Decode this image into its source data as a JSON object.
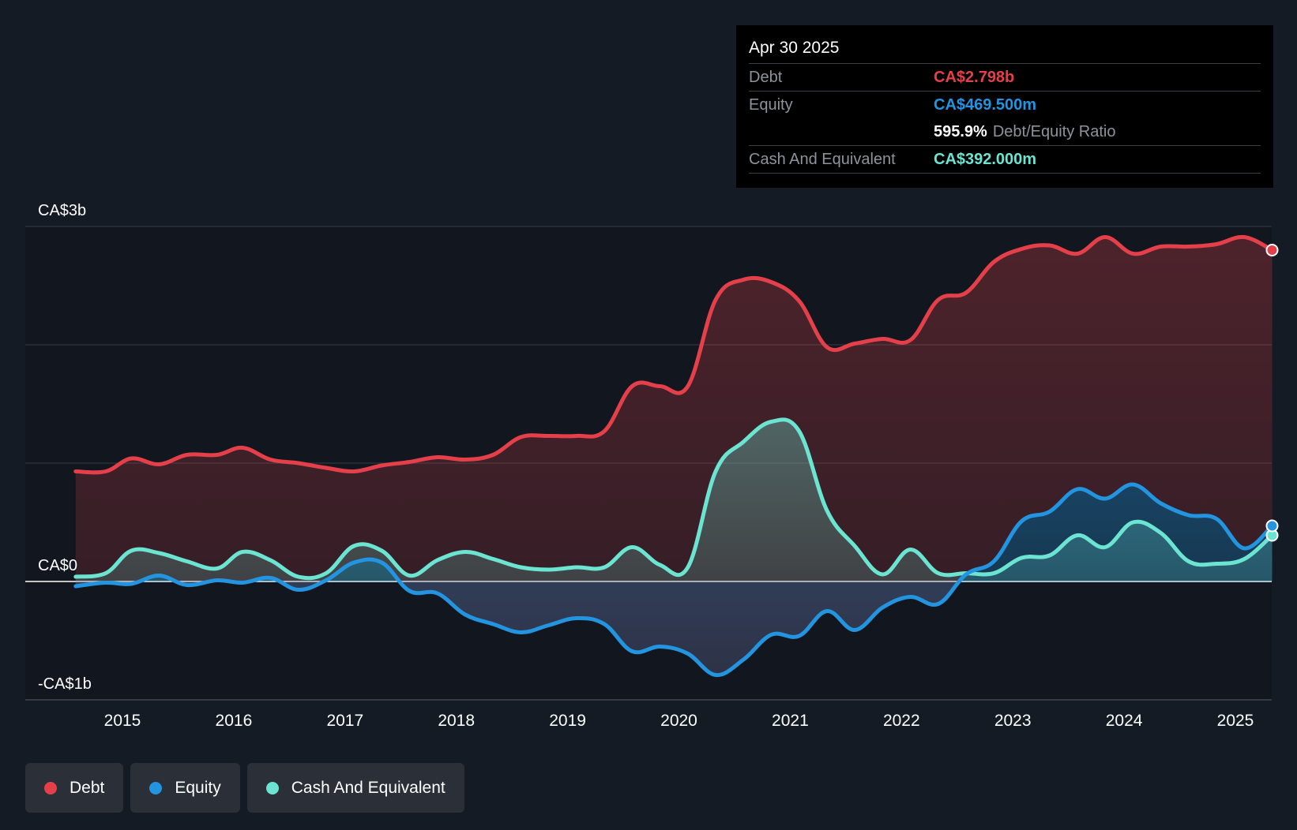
{
  "tooltip": {
    "date": "Apr 30 2025",
    "debt_label": "Debt",
    "debt_value": "CA$2.798b",
    "equity_label": "Equity",
    "equity_value": "CA$469.500m",
    "ratio_value": "595.9%",
    "ratio_label": "Debt/Equity Ratio",
    "cash_label": "Cash And Equivalent",
    "cash_value": "CA$392.000m"
  },
  "legend": [
    {
      "label": "Debt",
      "color": "#e5404a"
    },
    {
      "label": "Equity",
      "color": "#2394df"
    },
    {
      "label": "Cash And Equivalent",
      "color": "#6ce4d2"
    }
  ],
  "chart_data": {
    "type": "area",
    "y_unit": "CA$ billions",
    "ylim": [
      -1,
      3
    ],
    "xlim": [
      2014.6,
      2025.33
    ],
    "y_tick_labels": [
      {
        "value": 3,
        "label": "CA$3b"
      },
      {
        "value": 0,
        "label": "CA$0"
      },
      {
        "value": -1,
        "label": "-CA$1b"
      }
    ],
    "x_ticks": [
      2015,
      2016,
      2017,
      2018,
      2019,
      2020,
      2021,
      2022,
      2023,
      2024,
      2025
    ],
    "grid": true,
    "series": [
      {
        "name": "Debt",
        "color": "#e5404a",
        "x": [
          2014.58,
          2014.85,
          2015.08,
          2015.33,
          2015.58,
          2015.85,
          2016.08,
          2016.33,
          2016.58,
          2016.83,
          2017.08,
          2017.33,
          2017.58,
          2017.83,
          2018.08,
          2018.33,
          2018.58,
          2018.83,
          2019.08,
          2019.33,
          2019.58,
          2019.83,
          2020.08,
          2020.33,
          2020.58,
          2020.83,
          2021.08,
          2021.33,
          2021.58,
          2021.83,
          2022.08,
          2022.33,
          2022.58,
          2022.83,
          2023.08,
          2023.33,
          2023.58,
          2023.83,
          2024.08,
          2024.33,
          2024.58,
          2024.83,
          2025.08,
          2025.33
        ],
        "y": [
          0.93,
          0.93,
          1.04,
          0.99,
          1.07,
          1.07,
          1.13,
          1.03,
          1.0,
          0.96,
          0.93,
          0.98,
          1.01,
          1.05,
          1.03,
          1.07,
          1.22,
          1.23,
          1.23,
          1.27,
          1.65,
          1.65,
          1.65,
          2.38,
          2.55,
          2.53,
          2.37,
          1.98,
          2.01,
          2.05,
          2.04,
          2.38,
          2.44,
          2.7,
          2.81,
          2.84,
          2.77,
          2.91,
          2.77,
          2.83,
          2.83,
          2.85,
          2.91,
          2.8
        ]
      },
      {
        "name": "Equity",
        "color": "#2394df",
        "x": [
          2014.58,
          2014.85,
          2015.08,
          2015.33,
          2015.58,
          2015.85,
          2016.08,
          2016.33,
          2016.58,
          2016.83,
          2017.08,
          2017.33,
          2017.58,
          2017.83,
          2018.08,
          2018.33,
          2018.58,
          2018.83,
          2019.08,
          2019.33,
          2019.58,
          2019.83,
          2020.08,
          2020.33,
          2020.58,
          2020.83,
          2021.08,
          2021.33,
          2021.58,
          2021.83,
          2022.08,
          2022.33,
          2022.58,
          2022.83,
          2023.08,
          2023.33,
          2023.58,
          2023.83,
          2024.08,
          2024.33,
          2024.58,
          2024.83,
          2025.08,
          2025.33
        ],
        "y": [
          -0.04,
          -0.01,
          -0.02,
          0.05,
          -0.03,
          0.01,
          -0.01,
          0.03,
          -0.07,
          0.01,
          0.16,
          0.16,
          -0.08,
          -0.1,
          -0.28,
          -0.36,
          -0.43,
          -0.37,
          -0.31,
          -0.36,
          -0.59,
          -0.55,
          -0.61,
          -0.79,
          -0.66,
          -0.45,
          -0.46,
          -0.25,
          -0.41,
          -0.22,
          -0.13,
          -0.19,
          0.06,
          0.17,
          0.51,
          0.59,
          0.78,
          0.7,
          0.82,
          0.66,
          0.56,
          0.53,
          0.28,
          0.47
        ]
      },
      {
        "name": "Cash And Equivalent",
        "color": "#6ce4d2",
        "x": [
          2014.58,
          2014.85,
          2015.08,
          2015.33,
          2015.58,
          2015.85,
          2016.08,
          2016.33,
          2016.58,
          2016.83,
          2017.08,
          2017.33,
          2017.58,
          2017.83,
          2018.08,
          2018.33,
          2018.58,
          2018.83,
          2019.08,
          2019.33,
          2019.58,
          2019.83,
          2020.08,
          2020.33,
          2020.58,
          2020.83,
          2021.08,
          2021.33,
          2021.58,
          2021.83,
          2022.08,
          2022.33,
          2022.58,
          2022.83,
          2023.08,
          2023.33,
          2023.58,
          2023.83,
          2024.08,
          2024.33,
          2024.58,
          2024.83,
          2025.08,
          2025.33
        ],
        "y": [
          0.04,
          0.07,
          0.26,
          0.24,
          0.17,
          0.11,
          0.25,
          0.18,
          0.04,
          0.07,
          0.3,
          0.26,
          0.05,
          0.18,
          0.25,
          0.19,
          0.12,
          0.1,
          0.12,
          0.12,
          0.29,
          0.14,
          0.12,
          0.93,
          1.18,
          1.35,
          1.27,
          0.6,
          0.3,
          0.06,
          0.27,
          0.07,
          0.07,
          0.07,
          0.2,
          0.22,
          0.39,
          0.29,
          0.5,
          0.41,
          0.17,
          0.15,
          0.19,
          0.39
        ]
      }
    ]
  }
}
